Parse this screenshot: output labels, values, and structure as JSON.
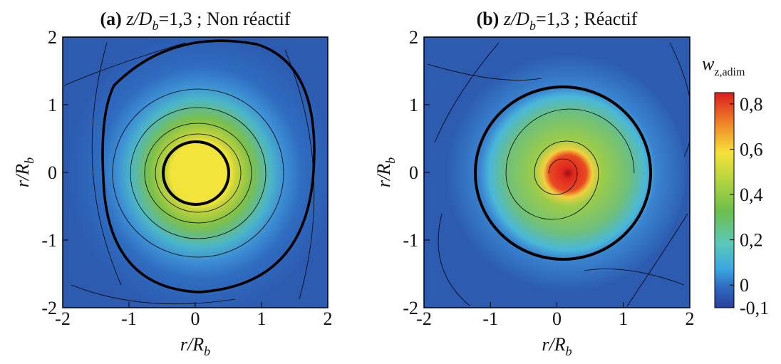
{
  "chart_data": [
    {
      "type": "contour",
      "title": {
        "tag": "(a)",
        "var": "z/D",
        "sub": "b",
        "rest": "=1,3 ; Non réactif"
      },
      "xlabel": {
        "var": "r/R",
        "sub": "b"
      },
      "ylabel": {
        "var": "r/R",
        "sub": "b"
      },
      "xlim": [
        -2,
        2
      ],
      "ylim": [
        -2,
        2
      ],
      "xticks": [
        -2,
        -1,
        0,
        1,
        2
      ],
      "yticks": [
        -2,
        -1,
        0,
        1,
        2
      ]
    },
    {
      "type": "contour",
      "title": {
        "tag": "(b)",
        "var": "z/D",
        "sub": "b",
        "rest": "=1,3 ; Réactif"
      },
      "xlabel": {
        "var": "r/R",
        "sub": "b"
      },
      "ylabel": {
        "var": "r/R",
        "sub": "b"
      },
      "xlim": [
        -2,
        2
      ],
      "ylim": [
        -2,
        2
      ],
      "xticks": [
        -2,
        -1,
        0,
        1,
        2
      ],
      "yticks": [
        -2,
        -1,
        0,
        1,
        2
      ]
    }
  ],
  "colorbar": {
    "var": "w",
    "sub": "z,adim",
    "lim": [
      -0.1,
      0.85
    ],
    "ticks": [
      {
        "value": 0.8,
        "label": "0,8"
      },
      {
        "value": 0.6,
        "label": "0,6"
      },
      {
        "value": 0.4,
        "label": "0,4"
      },
      {
        "value": 0.2,
        "label": "0,2"
      },
      0,
      {
        "value": -0.1,
        "label": "-0,1"
      }
    ]
  }
}
